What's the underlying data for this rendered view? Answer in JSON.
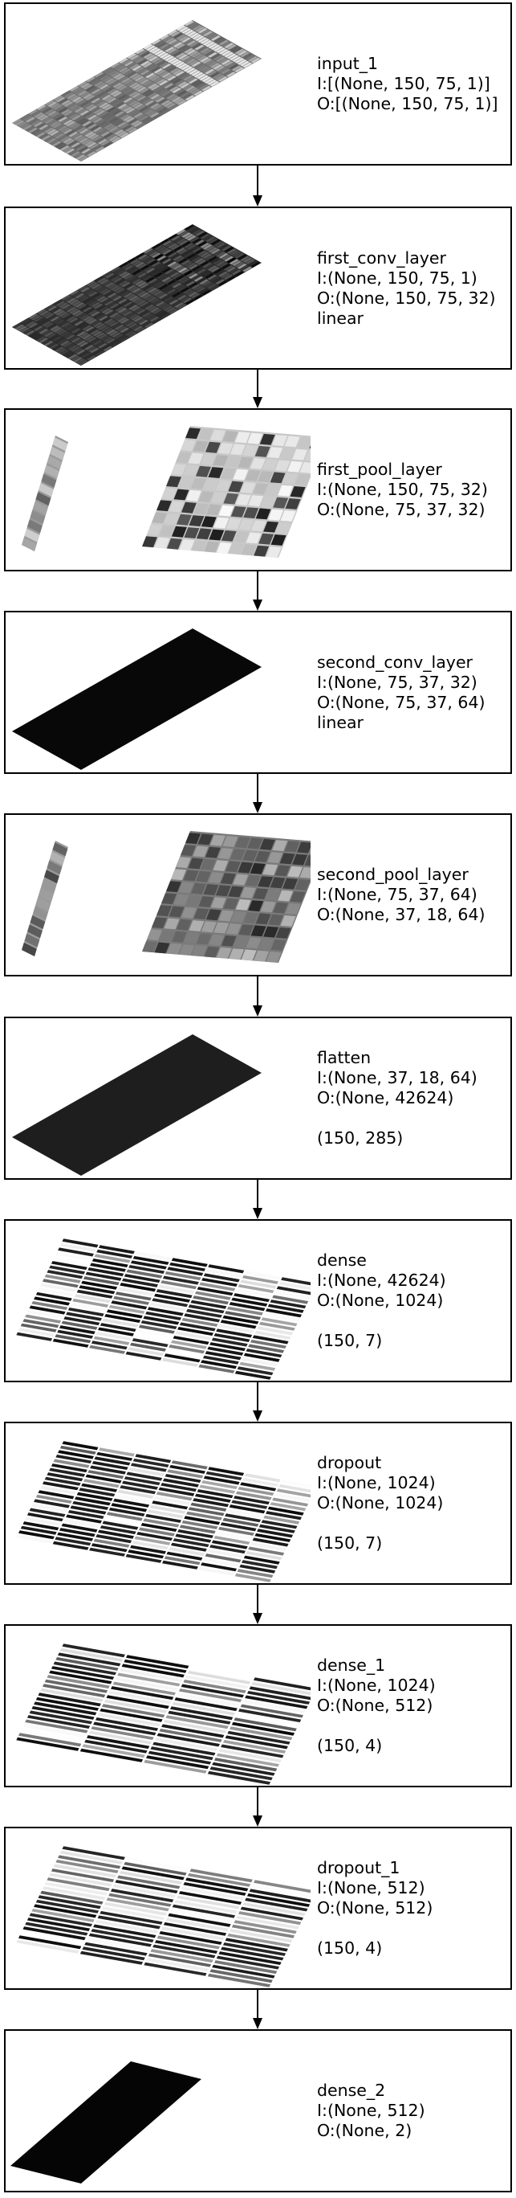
{
  "layers": [
    {
      "name": "input_1",
      "input": "I:[(None, 150, 75, 1)]",
      "output": "O:[(None, 150, 75, 1)]",
      "activation": "",
      "shape": "",
      "viz": "grid-fine"
    },
    {
      "name": "first_conv_layer",
      "input": "I:(None, 150, 75, 1)",
      "output": "O:(None, 150, 75, 32)",
      "activation": "linear",
      "shape": "",
      "viz": "grid-dark"
    },
    {
      "name": "first_pool_layer",
      "input": "I:(None, 150, 75, 32)",
      "output": "O:(None, 75, 37, 32)",
      "activation": "",
      "shape": "",
      "viz": "split-light"
    },
    {
      "name": "second_conv_layer",
      "input": "I:(None, 75, 37, 32)",
      "output": "O:(None, 75, 37, 64)",
      "activation": "linear",
      "shape": "",
      "viz": "solid-black"
    },
    {
      "name": "second_pool_layer",
      "input": "I:(None, 75, 37, 64)",
      "output": "O:(None, 37, 18, 64)",
      "activation": "",
      "shape": "",
      "viz": "split-mid"
    },
    {
      "name": "flatten",
      "input": "I:(None, 37, 18, 64)",
      "output": "O:(None, 42624)",
      "activation": "",
      "shape": "(150, 285)",
      "viz": "solid-dark"
    },
    {
      "name": "dense",
      "input": "I:(None, 42624)",
      "output": "O:(None, 1024)",
      "activation": "",
      "shape": "(150, 7)",
      "viz": "stripes-7"
    },
    {
      "name": "dropout",
      "input": "I:(None, 1024)",
      "output": "O:(None, 1024)",
      "activation": "",
      "shape": "(150, 7)",
      "viz": "stripes-7"
    },
    {
      "name": "dense_1",
      "input": "I:(None, 1024)",
      "output": "O:(None, 512)",
      "activation": "",
      "shape": "(150, 4)",
      "viz": "stripes-4"
    },
    {
      "name": "dropout_1",
      "input": "I:(None, 512)",
      "output": "O:(None, 512)",
      "activation": "",
      "shape": "(150, 4)",
      "viz": "stripes-4"
    },
    {
      "name": "dense_2",
      "input": "I:(None, 512)",
      "output": "O:(None, 2)",
      "activation": "",
      "shape": "",
      "viz": "narrow-black"
    }
  ]
}
